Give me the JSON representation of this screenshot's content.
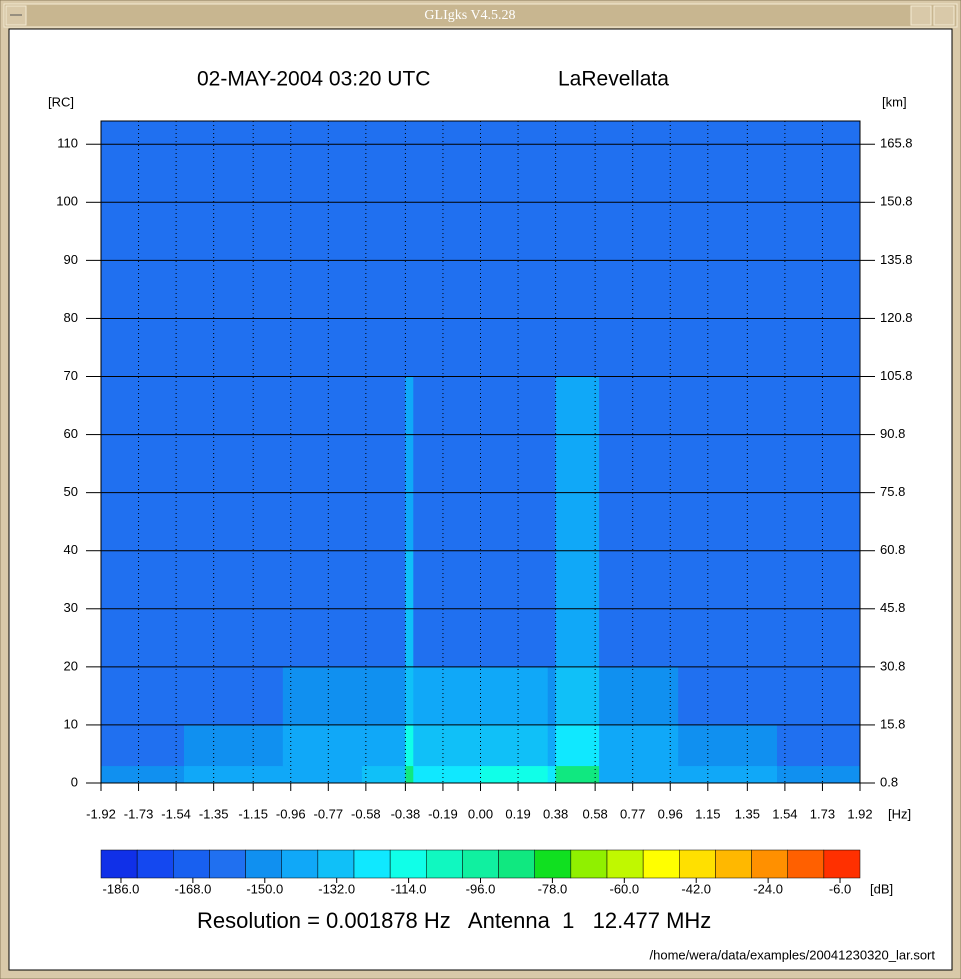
{
  "window": {
    "title": "GLIgks V4.5.28"
  },
  "chart_data": {
    "type": "heatmap",
    "title": "02-MAY-2004 03:20 UTC",
    "site": "LaRevellata",
    "ylabel": "[RC]",
    "y2label": "[km]",
    "xunit": "[Hz]",
    "xlim": [
      -1.92,
      1.92
    ],
    "xticks": [
      -1.92,
      -1.73,
      -1.54,
      -1.35,
      -1.15,
      -0.96,
      -0.77,
      -0.58,
      -0.38,
      -0.19,
      {
        "value": 0,
        "label": "0.00"
      },
      0.19,
      0.38,
      0.58,
      0.77,
      0.96,
      1.15,
      1.35,
      1.54,
      1.73,
      1.92
    ],
    "ylim": [
      0,
      114
    ],
    "yticks": [
      0,
      10,
      20,
      30,
      40,
      50,
      60,
      70,
      80,
      90,
      100,
      110
    ],
    "y2lim": [
      0.8,
      171.8
    ],
    "y2ticks": [
      0.8,
      15.8,
      30.8,
      45.8,
      60.8,
      75.8,
      90.8,
      105.8,
      120.8,
      135.8,
      150.8,
      165.8
    ],
    "grid": true,
    "xbins": [
      -1.92,
      -1.5,
      -1.0,
      -0.6,
      -0.38,
      -0.34,
      0.0,
      0.34,
      0.38,
      0.6,
      1.0,
      1.5,
      1.92
    ],
    "ybins": [
      0,
      3,
      10,
      20,
      40,
      70,
      114
    ],
    "z": [
      [
        -150,
        -145,
        -140,
        -130,
        -85,
        -120,
        -110,
        -125,
        -88,
        -140,
        -145,
        -150
      ],
      [
        -155,
        -150,
        -145,
        -140,
        -110,
        -135,
        -130,
        -140,
        -120,
        -145,
        -150,
        -155
      ],
      [
        -158,
        -156,
        -152,
        -148,
        -128,
        -145,
        -145,
        -148,
        -135,
        -150,
        -155,
        -158
      ],
      [
        -160,
        -160,
        -158,
        -156,
        -132,
        -155,
        -156,
        -156,
        -138,
        -158,
        -160,
        -160
      ],
      [
        -162,
        -162,
        -160,
        -160,
        -138,
        -160,
        -160,
        -160,
        -145,
        -160,
        -162,
        -162
      ],
      [
        -162,
        -162,
        -162,
        -162,
        -155,
        -162,
        -162,
        -162,
        -158,
        -162,
        -162,
        -162
      ]
    ],
    "colorbar": {
      "lim": [
        -191,
        -1
      ],
      "unit": "[dB]",
      "colors": [
        "#1030e8",
        "#1448f0",
        "#1860f0",
        "#2070f0",
        "#1090f0",
        "#10a8f8",
        "#10c0f8",
        "#10e8ff",
        "#10ffe8",
        "#10f8c0",
        "#10f0a0",
        "#10e880",
        "#10e020",
        "#90f000",
        "#c0f800",
        "#ffff00",
        "#ffe000",
        "#ffb800",
        "#ff9000",
        "#ff6000",
        "#ff3000"
      ],
      "ticks": [
        {
          "value": -186,
          "label": "-186.0"
        },
        {
          "value": -168,
          "label": "-168.0"
        },
        {
          "value": -150,
          "label": "-150.0"
        },
        {
          "value": -132,
          "label": "-132.0"
        },
        {
          "value": -114,
          "label": "-114.0"
        },
        {
          "value": -96,
          "label": "-96.0"
        },
        {
          "value": -78,
          "label": "-78.0"
        },
        {
          "value": -60,
          "label": "-60.0"
        },
        {
          "value": -42,
          "label": "-42.0"
        },
        {
          "value": -24,
          "label": "-24.0"
        },
        {
          "value": -6,
          "label": "-6.0"
        }
      ]
    },
    "footer": "Resolution = 0.001878 Hz   Antenna  1   12.477 MHz",
    "file": "/home/wera/data/examples/20041230320_lar.sort"
  }
}
